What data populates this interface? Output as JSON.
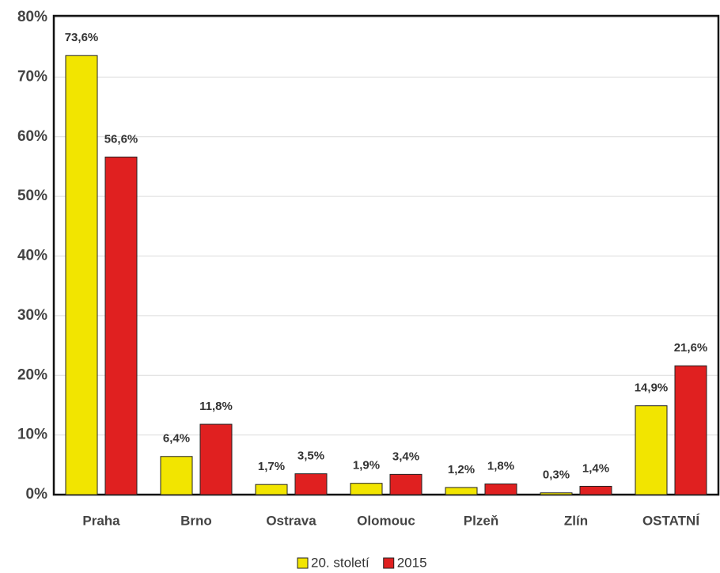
{
  "chart_data": {
    "type": "bar",
    "categories": [
      "Praha",
      "Brno",
      "Ostrava",
      "Olomouc",
      "Plzeň",
      "Zlín",
      "OSTATNÍ"
    ],
    "series": [
      {
        "name": "20. století",
        "color": "#f2e500",
        "values": [
          73.6,
          6.4,
          1.7,
          1.9,
          1.2,
          0.3,
          14.9
        ],
        "value_labels": [
          "73,6%",
          "6,4%",
          "1,7%",
          "1,9%",
          "1,2%",
          "0,3%",
          "14,9%"
        ]
      },
      {
        "name": "2015",
        "color": "#e02020",
        "values": [
          56.6,
          11.8,
          3.5,
          3.4,
          1.8,
          1.4,
          21.6
        ],
        "value_labels": [
          "56,6%",
          "11,8%",
          "3,5%",
          "3,4%",
          "1,8%",
          "1,4%",
          "21,6%"
        ]
      }
    ],
    "ylim": [
      0,
      80
    ],
    "yticks": [
      {
        "value": 0,
        "label": "0%"
      },
      {
        "value": 10,
        "label": "10%"
      },
      {
        "value": 20,
        "label": "20%"
      },
      {
        "value": 30,
        "label": "30%"
      },
      {
        "value": 40,
        "label": "40%"
      },
      {
        "value": 50,
        "label": "50%"
      },
      {
        "value": 60,
        "label": "60%"
      },
      {
        "value": 70,
        "label": "70%"
      },
      {
        "value": 80,
        "label": "80%"
      }
    ],
    "grid": true,
    "legend": "bottom"
  }
}
